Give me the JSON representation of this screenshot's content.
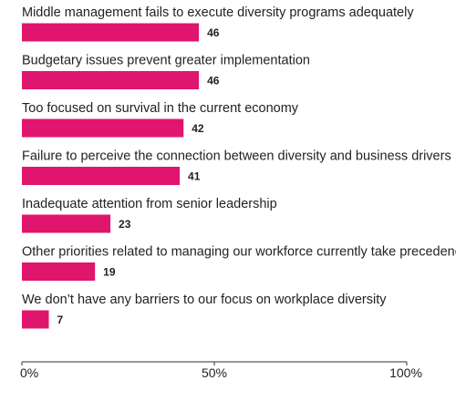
{
  "chart_data": {
    "type": "bar",
    "orientation": "horizontal",
    "title": "",
    "xlabel": "",
    "ylabel": "",
    "xlim": [
      0,
      100
    ],
    "bar_color": "#e0156e",
    "axis_color": "#333333",
    "categories": [
      "Middle management fails to execute diversity programs adequately",
      "Budgetary issues prevent greater implementation",
      "Too focused on survival in the current economy",
      "Failure to perceive the connection between diversity and business drivers",
      "Inadequate attention from senior leadership",
      "Other priorities related to managing our workforce currently take precedence",
      "We don’t have any barriers to our focus on workplace diversity"
    ],
    "values": [
      46,
      46,
      42,
      41,
      23,
      19,
      7
    ],
    "value_labels": [
      "46",
      "46",
      "42",
      "41",
      "23",
      "19",
      "7"
    ],
    "ticks": [
      0,
      50,
      100
    ],
    "tick_labels": [
      "0%",
      "50%",
      "100%"
    ],
    "grid": false,
    "legend": "none"
  }
}
